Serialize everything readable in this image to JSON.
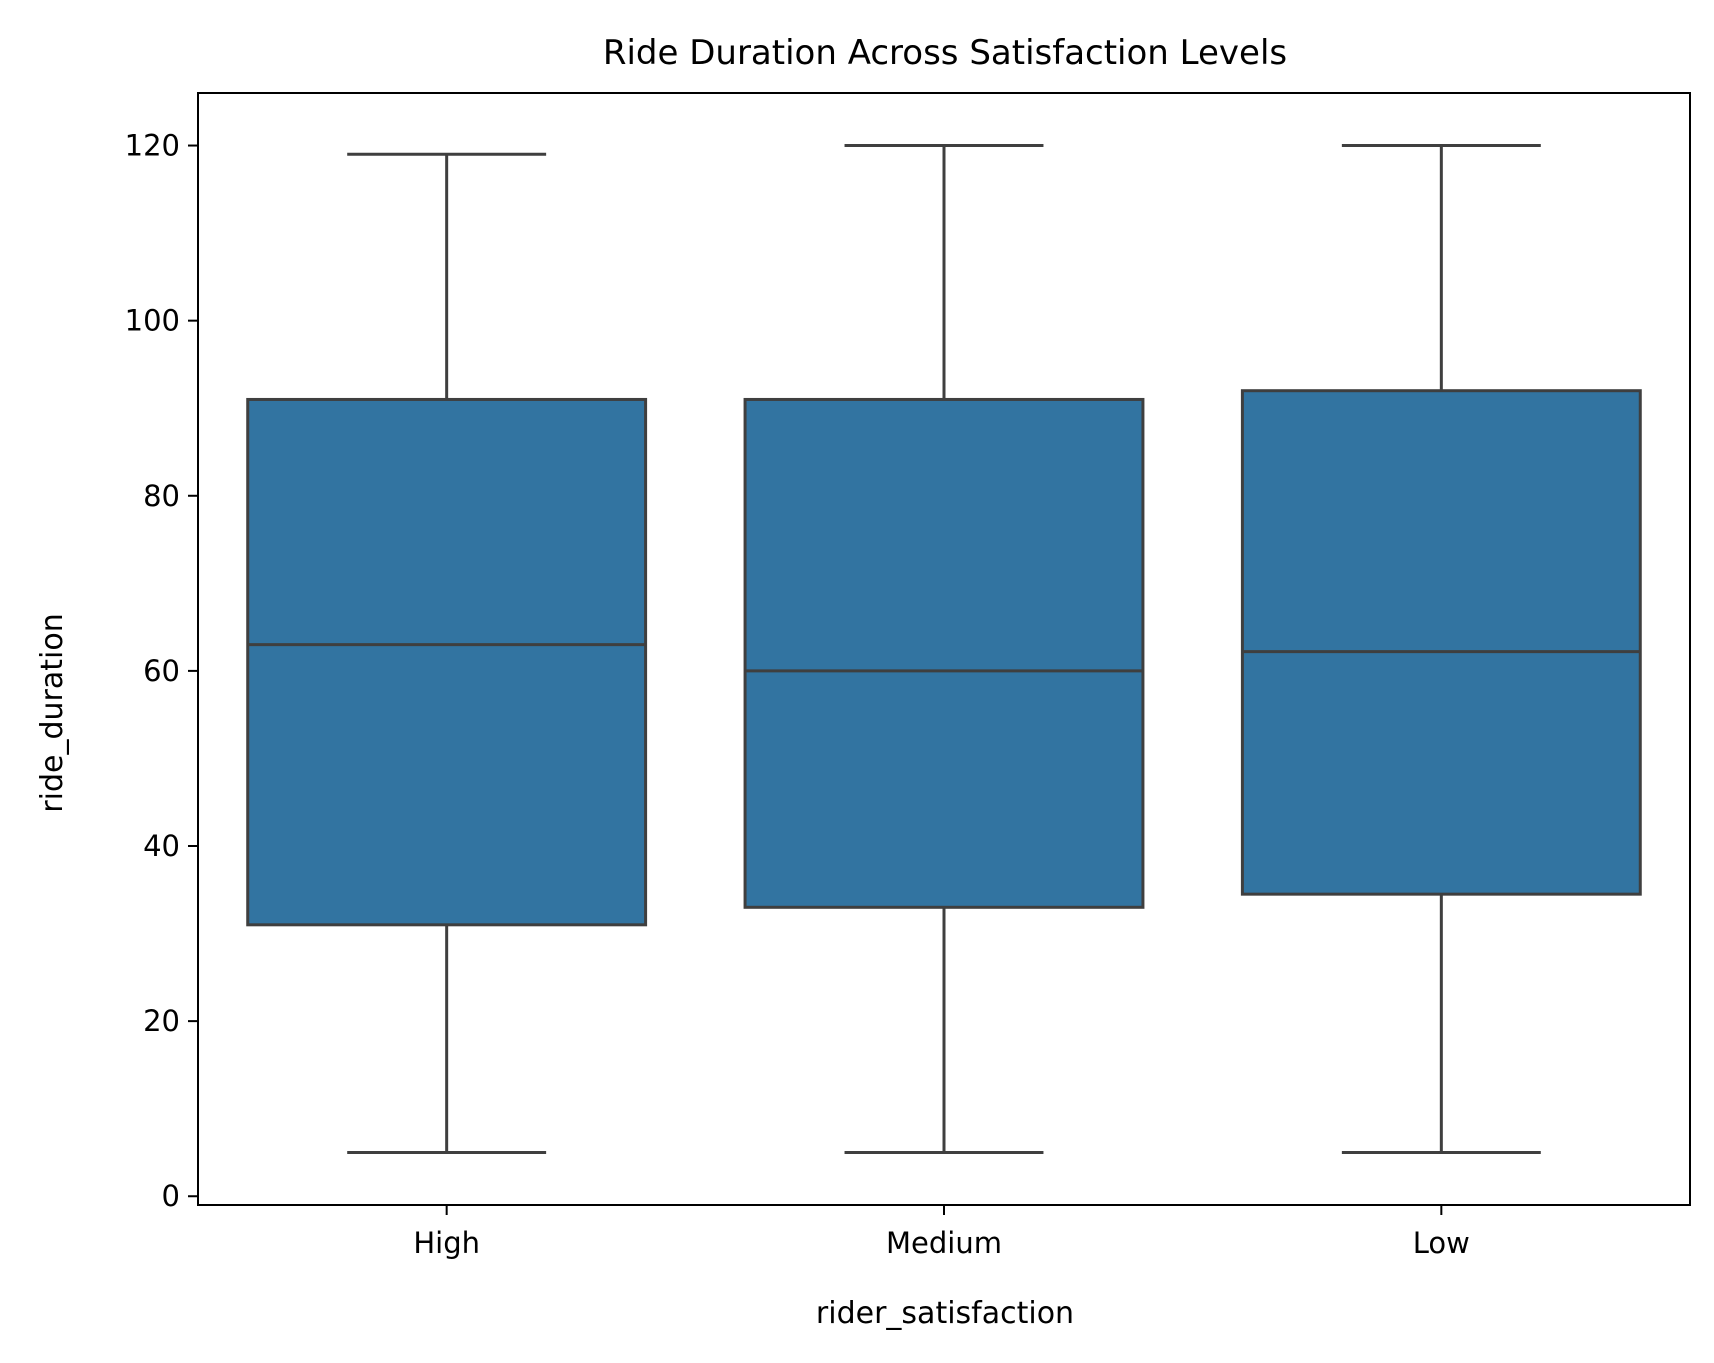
{
  "chart_data": {
    "type": "box",
    "title": "Ride Duration Across Satisfaction Levels",
    "xlabel": "rider_satisfaction",
    "ylabel": "ride_duration",
    "categories": [
      "High",
      "Medium",
      "Low"
    ],
    "ylim": [
      -1,
      126
    ],
    "yticks": [
      0,
      20,
      40,
      60,
      80,
      100,
      120
    ],
    "grid": false,
    "legend": "none",
    "boxes": [
      {
        "category": "High",
        "whisker_low": 5,
        "q1": 31,
        "median": 63,
        "q3": 91,
        "whisker_high": 119
      },
      {
        "category": "Medium",
        "whisker_low": 5,
        "q1": 33,
        "median": 60,
        "q3": 91,
        "whisker_high": 120
      },
      {
        "category": "Low",
        "whisker_low": 5,
        "q1": 34.5,
        "median": 62.2,
        "q3": 92,
        "whisker_high": 120
      }
    ],
    "colors": {
      "box_fill": "#3274a1",
      "box_edge": "#3f3f3f",
      "axis": "#000000"
    }
  }
}
